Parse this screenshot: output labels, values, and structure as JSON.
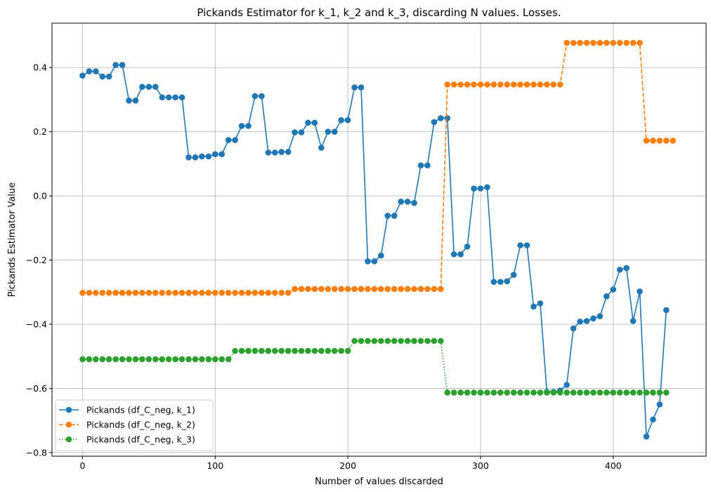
{
  "chart_data": {
    "type": "line",
    "title": "Pickands Estimator for k_1, k_2 and k_3, discarding N values. Losses.",
    "xlabel": "Number of values discarded",
    "ylabel": "Pickands Estimator Value",
    "xlim": [
      -23,
      470
    ],
    "ylim": [
      -0.8113,
      0.5383
    ],
    "xticks": [
      0,
      100,
      200,
      300,
      400
    ],
    "xtick_labels": [
      "0",
      "100",
      "200",
      "300",
      "400"
    ],
    "yticks": [
      -0.8,
      -0.6,
      -0.4,
      -0.2,
      0.0,
      0.2,
      0.4
    ],
    "ytick_labels": [
      "−0.8",
      "−0.6",
      "−0.4",
      "−0.2",
      "0.0",
      "0.2",
      "0.4"
    ],
    "grid": true,
    "legend_position": "lower-left",
    "x_step": 5,
    "series": [
      {
        "name": "Pickands (df_C_neg, k_1)",
        "color": "#1f77b4",
        "line_style": "solid",
        "marker": "circle",
        "values": [
          0.375,
          0.388,
          0.388,
          0.372,
          0.372,
          0.408,
          0.408,
          0.297,
          0.297,
          0.34,
          0.34,
          0.34,
          0.307,
          0.307,
          0.307,
          0.307,
          0.12,
          0.12,
          0.123,
          0.123,
          0.13,
          0.13,
          0.174,
          0.174,
          0.218,
          0.218,
          0.311,
          0.311,
          0.135,
          0.135,
          0.137,
          0.137,
          0.198,
          0.198,
          0.228,
          0.228,
          0.15,
          0.2,
          0.2,
          0.236,
          0.236,
          0.338,
          0.338,
          -0.204,
          -0.204,
          -0.186,
          -0.062,
          -0.062,
          -0.018,
          -0.018,
          -0.022,
          0.095,
          0.095,
          0.23,
          0.242,
          0.242,
          -0.182,
          -0.182,
          -0.158,
          0.023,
          0.023,
          0.027,
          -0.268,
          -0.268,
          -0.266,
          -0.246,
          -0.154,
          -0.154,
          -0.345,
          -0.335,
          -0.611,
          -0.611,
          -0.607,
          -0.589,
          -0.413,
          -0.392,
          -0.39,
          -0.382,
          -0.375,
          -0.313,
          -0.292,
          -0.23,
          -0.225,
          -0.39,
          -0.298,
          -0.75,
          -0.697,
          -0.65,
          -0.356
        ]
      },
      {
        "name": "Pickands (df_C_neg, k_2)",
        "color": "#ff7f0e",
        "line_style": "dashed",
        "marker": "circle",
        "values": [
          -0.302,
          -0.302,
          -0.302,
          -0.302,
          -0.302,
          -0.302,
          -0.302,
          -0.302,
          -0.302,
          -0.302,
          -0.302,
          -0.302,
          -0.302,
          -0.302,
          -0.302,
          -0.302,
          -0.302,
          -0.302,
          -0.302,
          -0.302,
          -0.302,
          -0.302,
          -0.302,
          -0.302,
          -0.302,
          -0.302,
          -0.302,
          -0.302,
          -0.302,
          -0.302,
          -0.302,
          -0.302,
          -0.29,
          -0.29,
          -0.29,
          -0.29,
          -0.29,
          -0.29,
          -0.29,
          -0.29,
          -0.29,
          -0.29,
          -0.29,
          -0.29,
          -0.29,
          -0.29,
          -0.29,
          -0.29,
          -0.29,
          -0.29,
          -0.29,
          -0.29,
          -0.29,
          -0.29,
          -0.29,
          0.347,
          0.347,
          0.347,
          0.347,
          0.347,
          0.347,
          0.347,
          0.347,
          0.347,
          0.347,
          0.347,
          0.347,
          0.347,
          0.347,
          0.347,
          0.347,
          0.347,
          0.347,
          0.477,
          0.477,
          0.477,
          0.477,
          0.477,
          0.477,
          0.477,
          0.477,
          0.477,
          0.477,
          0.477,
          0.477,
          0.172,
          0.172,
          0.172,
          0.172,
          0.172
        ]
      },
      {
        "name": "Pickands (df_C_neg, k_3)",
        "color": "#2ca02c",
        "line_style": "dotted",
        "marker": "circle",
        "values": [
          -0.509,
          -0.509,
          -0.509,
          -0.509,
          -0.509,
          -0.509,
          -0.509,
          -0.509,
          -0.509,
          -0.509,
          -0.509,
          -0.509,
          -0.509,
          -0.509,
          -0.509,
          -0.509,
          -0.509,
          -0.509,
          -0.509,
          -0.509,
          -0.509,
          -0.509,
          -0.509,
          -0.483,
          -0.483,
          -0.483,
          -0.483,
          -0.483,
          -0.483,
          -0.483,
          -0.483,
          -0.483,
          -0.483,
          -0.483,
          -0.483,
          -0.483,
          -0.483,
          -0.483,
          -0.483,
          -0.483,
          -0.483,
          -0.452,
          -0.452,
          -0.452,
          -0.452,
          -0.452,
          -0.452,
          -0.452,
          -0.452,
          -0.452,
          -0.452,
          -0.452,
          -0.452,
          -0.452,
          -0.452,
          -0.613,
          -0.613,
          -0.613,
          -0.613,
          -0.613,
          -0.613,
          -0.613,
          -0.613,
          -0.613,
          -0.613,
          -0.613,
          -0.613,
          -0.613,
          -0.613,
          -0.613,
          -0.613,
          -0.613,
          -0.613,
          -0.613,
          -0.613,
          -0.613,
          -0.613,
          -0.613,
          -0.613,
          -0.613,
          -0.613,
          -0.613,
          -0.613,
          -0.613,
          -0.613,
          -0.613,
          -0.613,
          -0.613,
          -0.613
        ]
      }
    ]
  }
}
